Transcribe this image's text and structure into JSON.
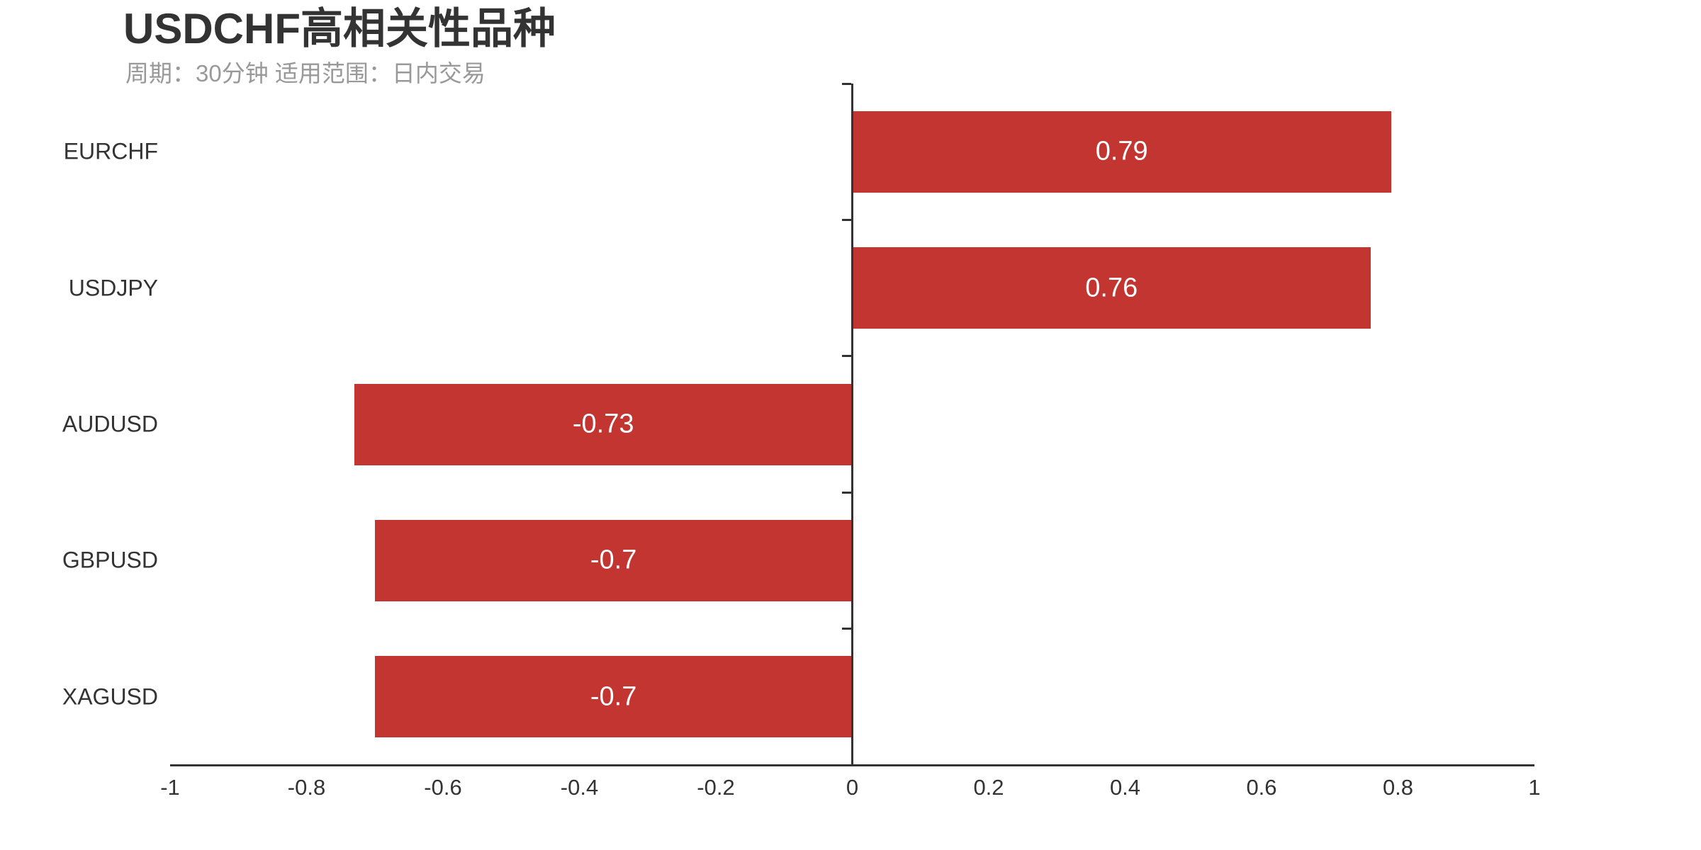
{
  "title": "USDCHF高相关性品种",
  "subtitle": "周期：30分钟 适用范围：日内交易",
  "colors": {
    "bar": "#c23531",
    "axis": "#333333",
    "title_text": "#333333",
    "subtitle_text": "#999999",
    "axis_label_text": "#333333",
    "value_label_text": "#ffffff",
    "background": "#ffffff"
  },
  "chart_data": {
    "type": "bar",
    "orientation": "horizontal",
    "title": "USDCHF高相关性品种",
    "subtitle": "周期：30分钟 适用范围：日内交易",
    "categories": [
      "EURCHF",
      "USDJPY",
      "AUDUSD",
      "GBPUSD",
      "XAGUSD"
    ],
    "values": [
      0.79,
      0.76,
      -0.73,
      -0.7,
      -0.7
    ],
    "value_labels": [
      "0.79",
      "0.76",
      "-0.73",
      "-0.7",
      "-0.7"
    ],
    "xlabel": "",
    "ylabel": "",
    "xlim": [
      -1,
      1
    ],
    "x_tick_values": [
      -1,
      -0.8,
      -0.6,
      -0.4,
      -0.2,
      0,
      0.2,
      0.4,
      0.6,
      0.8,
      1
    ],
    "x_tick_labels": [
      "-1",
      "-0.8",
      "-0.6",
      "-0.4",
      "-0.2",
      "0",
      "0.2",
      "0.4",
      "0.6",
      "0.8",
      "1"
    ],
    "grid": false,
    "legend": false,
    "bar_color": "#c23531",
    "value_label_position": "inside-center",
    "category_axis_on_zero": true
  }
}
